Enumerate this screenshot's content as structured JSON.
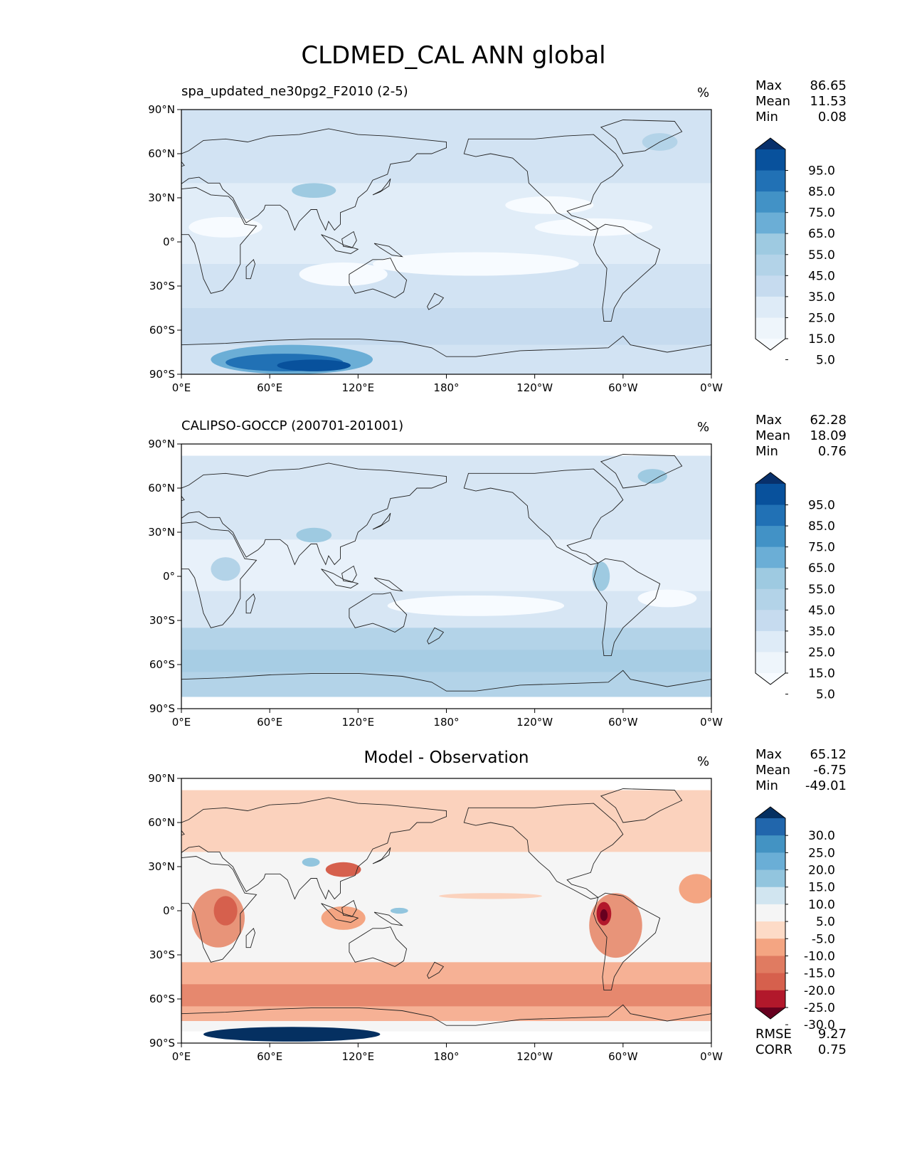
{
  "figure": {
    "title": "CLDMED_CAL ANN global"
  },
  "axes": {
    "lat_ticks": [
      "90°N",
      "60°N",
      "30°N",
      "0°",
      "30°S",
      "60°S",
      "90°S"
    ],
    "lon_ticks": [
      "0°E",
      "60°E",
      "120°E",
      "180°",
      "120°W",
      "60°W",
      "0°W"
    ]
  },
  "panels": [
    {
      "title": "spa_updated_ne30pg2_F2010 (2-5)",
      "units": "%",
      "stats": [
        {
          "label": "Max",
          "value": "86.65"
        },
        {
          "label": "Mean",
          "value": "11.53"
        },
        {
          "label": "Min",
          "value": "0.08"
        }
      ],
      "colorbar": {
        "labels": [
          "95.0",
          "85.0",
          "75.0",
          "65.0",
          "55.0",
          "45.0",
          "35.0",
          "25.0",
          "15.0",
          "5.0"
        ],
        "colors": [
          "#08306b",
          "#08519c",
          "#2171b5",
          "#4292c6",
          "#6baed6",
          "#9ecae1",
          "#b3d3e8",
          "#c6dbef",
          "#deebf7",
          "#eef5fb",
          "#f7fbff"
        ]
      }
    },
    {
      "title": "CALIPSO-GOCCP (200701-201001)",
      "units": "%",
      "stats": [
        {
          "label": "Max",
          "value": "62.28"
        },
        {
          "label": "Mean",
          "value": "18.09"
        },
        {
          "label": "Min",
          "value": "0.76"
        }
      ],
      "colorbar": {
        "labels": [
          "95.0",
          "85.0",
          "75.0",
          "65.0",
          "55.0",
          "45.0",
          "35.0",
          "25.0",
          "15.0",
          "5.0"
        ],
        "colors": [
          "#08306b",
          "#08519c",
          "#2171b5",
          "#4292c6",
          "#6baed6",
          "#9ecae1",
          "#b3d3e8",
          "#c6dbef",
          "#deebf7",
          "#eef5fb",
          "#f7fbff"
        ]
      }
    },
    {
      "title": "Model - Observation",
      "units": "%",
      "stats": [
        {
          "label": "Max",
          "value": "65.12"
        },
        {
          "label": "Mean",
          "value": "-6.75"
        },
        {
          "label": "Min",
          "value": "-49.01"
        }
      ],
      "extra_stats": [
        {
          "label": "RMSE",
          "value": "9.27"
        },
        {
          "label": "CORR",
          "value": "0.75"
        }
      ],
      "colorbar": {
        "labels": [
          "30.0",
          "25.0",
          "20.0",
          "15.0",
          "10.0",
          "5.0",
          "-5.0",
          "-10.0",
          "-15.0",
          "-20.0",
          "-25.0",
          "-30.0"
        ],
        "colors": [
          "#053061",
          "#2166ac",
          "#4393c3",
          "#6aaed6",
          "#92c5de",
          "#d1e5f0",
          "#f5f5f5",
          "#fddbc7",
          "#f4a582",
          "#e07b61",
          "#d6604d",
          "#b2182b",
          "#67001f"
        ]
      }
    }
  ]
}
